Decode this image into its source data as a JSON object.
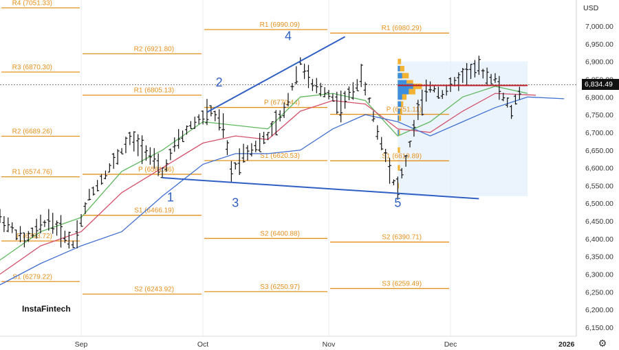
{
  "currency": "USD",
  "brand": "InstaFintech",
  "year_label": "2026",
  "current_price": "6,834.49",
  "colors": {
    "pivot": "#e6901c",
    "trendline": "#2f5fc4",
    "ma_fast": "#5fb85f",
    "ma_mid": "#d4506a",
    "ma_slow": "#3f6fd0",
    "price_line": "#c0202a",
    "bars": "#111111",
    "vp_orange": "#f2b233",
    "vp_blue": "#3c8ee0"
  },
  "chart_data": {
    "type": "candlestick",
    "ylim": [
      6110,
      7075
    ],
    "y_ticks": [
      "7,000.00",
      "6,950.00",
      "6,900.00",
      "6,850.00",
      "6,800.00",
      "6,750.00",
      "6,700.00",
      "6,650.00",
      "6,600.00",
      "6,550.00",
      "6,500.00",
      "6,450.00",
      "6,400.00",
      "6,350.00",
      "6,300.00",
      "6,250.00",
      "6,200.00",
      "6,150.00"
    ],
    "x_labels": [
      {
        "label": "Sep",
        "day": 20
      },
      {
        "label": "Oct",
        "day": 50
      },
      {
        "label": "Nov",
        "day": 81
      },
      {
        "label": "Dec",
        "day": 111
      }
    ],
    "x_range": [
      0,
      159
    ],
    "pivot_periods": [
      {
        "start": 0,
        "end": 20,
        "levels": [
          {
            "label": "R4 (7051.33)",
            "value": 7051.33
          },
          {
            "label": "R3 (6870.30)",
            "value": 6870.3
          },
          {
            "label": "R2 (6689.26)",
            "value": 6689.26
          },
          {
            "label": "R1 (6574.76)",
            "value": 6574.76
          },
          {
            "label": "P (6393.72)",
            "value": 6393.72
          },
          {
            "label": "S1 (6279.22)",
            "value": 6279.22
          }
        ]
      },
      {
        "start": 20,
        "end": 50,
        "levels": [
          {
            "label": "R2 (6921.80)",
            "value": 6921.8
          },
          {
            "label": "R1 (6805.13)",
            "value": 6805.13
          },
          {
            "label": "P (6581.86)",
            "value": 6581.86
          },
          {
            "label": "S1 (6466.19)",
            "value": 6466.19
          },
          {
            "label": "S2 (6243.92)",
            "value": 6243.92
          }
        ]
      },
      {
        "start": 50,
        "end": 81,
        "levels": [
          {
            "label": "R1 (6990.09)",
            "value": 6990.09
          },
          {
            "label": "P (6770.44)",
            "value": 6770.44
          },
          {
            "label": "S1 (6620.53)",
            "value": 6620.53
          },
          {
            "label": "S2 (6400.88)",
            "value": 6400.88
          },
          {
            "label": "S3 (6250.97)",
            "value": 6250.97
          }
        ]
      },
      {
        "start": 81,
        "end": 111,
        "levels": [
          {
            "label": "R1 (6980.29)",
            "value": 6980.29
          },
          {
            "label": "P (6751.11)",
            "value": 6751.11
          },
          {
            "label": "S1 (6619.89)",
            "value": 6619.89
          },
          {
            "label": "S2 (6390.71)",
            "value": 6390.71
          },
          {
            "label": "S3 (6259.49)",
            "value": 6259.49
          }
        ]
      }
    ],
    "wave_labels": [
      {
        "label": "1",
        "day": 42,
        "value": 6505
      },
      {
        "label": "2",
        "day": 54,
        "value": 6830
      },
      {
        "label": "3",
        "day": 58,
        "value": 6490
      },
      {
        "label": "4",
        "day": 71,
        "value": 6960
      },
      {
        "label": "5",
        "day": 98,
        "value": 6490
      }
    ],
    "trendlines": [
      {
        "from": [
          51,
          6757
        ],
        "to": [
          85,
          6970
        ]
      },
      {
        "from": [
          40,
          6572
        ],
        "to": [
          118,
          6513
        ]
      }
    ],
    "ohlc_anchors": [
      [
        0,
        6460
      ],
      [
        6,
        6395
      ],
      [
        12,
        6455
      ],
      [
        18,
        6385
      ],
      [
        22,
        6520
      ],
      [
        27,
        6600
      ],
      [
        32,
        6680
      ],
      [
        36,
        6650
      ],
      [
        40,
        6585
      ],
      [
        43,
        6660
      ],
      [
        47,
        6720
      ],
      [
        52,
        6760
      ],
      [
        55,
        6715
      ],
      [
        57,
        6590
      ],
      [
        60,
        6640
      ],
      [
        64,
        6670
      ],
      [
        66,
        6690
      ],
      [
        70,
        6760
      ],
      [
        74,
        6900
      ],
      [
        77,
        6830
      ],
      [
        81,
        6810
      ],
      [
        84,
        6775
      ],
      [
        87,
        6820
      ],
      [
        89,
        6855
      ],
      [
        91,
        6790
      ],
      [
        93,
        6700
      ],
      [
        95,
        6640
      ],
      [
        97,
        6560
      ],
      [
        98,
        6545
      ],
      [
        100,
        6620
      ],
      [
        103,
        6760
      ],
      [
        106,
        6830
      ],
      [
        109,
        6810
      ],
      [
        112,
        6840
      ],
      [
        115,
        6870
      ],
      [
        118,
        6880
      ],
      [
        120,
        6860
      ],
      [
        122,
        6850
      ],
      [
        124,
        6800
      ],
      [
        126,
        6760
      ],
      [
        128,
        6815
      ]
    ],
    "moving_averages": [
      {
        "name": "fast",
        "points": [
          [
            0,
            6340
          ],
          [
            10,
            6420
          ],
          [
            20,
            6460
          ],
          [
            30,
            6590
          ],
          [
            40,
            6650
          ],
          [
            50,
            6730
          ],
          [
            58,
            6720
          ],
          [
            66,
            6710
          ],
          [
            74,
            6800
          ],
          [
            82,
            6810
          ],
          [
            90,
            6790
          ],
          [
            98,
            6690
          ],
          [
            106,
            6730
          ],
          [
            114,
            6800
          ],
          [
            122,
            6830
          ],
          [
            130,
            6810
          ]
        ]
      },
      {
        "name": "mid",
        "points": [
          [
            0,
            6300
          ],
          [
            10,
            6380
          ],
          [
            20,
            6420
          ],
          [
            30,
            6530
          ],
          [
            40,
            6600
          ],
          [
            50,
            6670
          ],
          [
            58,
            6690
          ],
          [
            66,
            6680
          ],
          [
            74,
            6760
          ],
          [
            82,
            6790
          ],
          [
            90,
            6780
          ],
          [
            98,
            6710
          ],
          [
            106,
            6700
          ],
          [
            114,
            6760
          ],
          [
            122,
            6810
          ],
          [
            132,
            6805
          ]
        ]
      },
      {
        "name": "slow",
        "points": [
          [
            0,
            6270
          ],
          [
            10,
            6330
          ],
          [
            20,
            6380
          ],
          [
            30,
            6420
          ],
          [
            40,
            6520
          ],
          [
            50,
            6610
          ],
          [
            58,
            6640
          ],
          [
            66,
            6640
          ],
          [
            74,
            6650
          ],
          [
            82,
            6710
          ],
          [
            90,
            6750
          ],
          [
            98,
            6730
          ],
          [
            106,
            6690
          ],
          [
            114,
            6730
          ],
          [
            122,
            6770
          ],
          [
            130,
            6800
          ],
          [
            139,
            6795
          ]
        ]
      }
    ],
    "volume_profile": [
      {
        "price": 6900,
        "orange": 3,
        "blue": 0
      },
      {
        "price": 6880,
        "orange": 6,
        "blue": 2
      },
      {
        "price": 6860,
        "orange": 10,
        "blue": 4
      },
      {
        "price": 6840,
        "orange": 14,
        "blue": 8
      },
      {
        "price": 6830,
        "orange": 22,
        "blue": 14
      },
      {
        "price": 6815,
        "orange": 16,
        "blue": 10
      },
      {
        "price": 6800,
        "orange": 8,
        "blue": 4
      },
      {
        "price": 6780,
        "orange": 5,
        "blue": 3
      },
      {
        "price": 6760,
        "orange": 4,
        "blue": 2
      },
      {
        "price": 6740,
        "orange": 3,
        "blue": 1
      },
      {
        "price": 6700,
        "orange": 2,
        "blue": 1
      },
      {
        "price": 6650,
        "orange": 2,
        "blue": 0
      },
      {
        "price": 6600,
        "orange": 2,
        "blue": 0
      },
      {
        "price": 6550,
        "orange": 1,
        "blue": 0
      }
    ],
    "vp_box": {
      "start": 98,
      "end": 130,
      "top": 6900,
      "bottom": 6520
    },
    "current_price_value": 6834.49
  }
}
